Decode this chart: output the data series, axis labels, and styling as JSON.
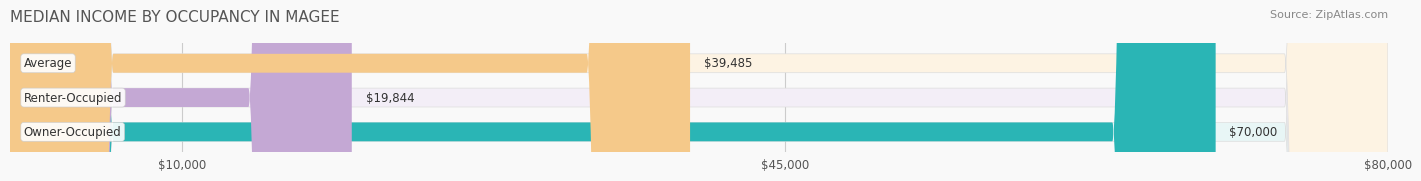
{
  "title": "MEDIAN INCOME BY OCCUPANCY IN MAGEE",
  "source": "Source: ZipAtlas.com",
  "categories": [
    "Owner-Occupied",
    "Renter-Occupied",
    "Average"
  ],
  "values": [
    70000,
    19844,
    39485
  ],
  "value_labels": [
    "$70,000",
    "$19,844",
    "$39,485"
  ],
  "bar_colors": [
    "#2ab5b5",
    "#c4a8d4",
    "#f5c98a"
  ],
  "bar_bg_colors": [
    "#e8f6f6",
    "#f3eef7",
    "#fdf3e3"
  ],
  "x_max": 80000,
  "x_ticks": [
    10000,
    45000,
    80000
  ],
  "x_tick_labels": [
    "$10,000",
    "$45,000",
    "$80,000"
  ],
  "title_fontsize": 11,
  "source_fontsize": 8,
  "label_fontsize": 8.5,
  "value_fontsize": 8.5,
  "tick_fontsize": 8.5,
  "background_color": "#f9f9f9",
  "bar_height": 0.55,
  "bar_bg_alpha": 1.0,
  "grid_color": "#cccccc"
}
